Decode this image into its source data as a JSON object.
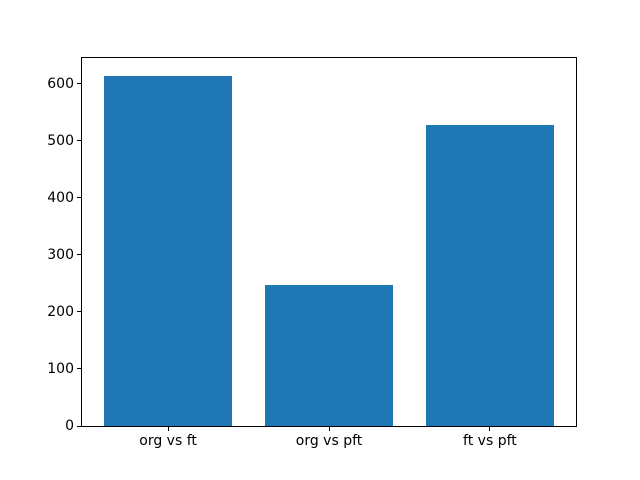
{
  "chart_data": {
    "type": "bar",
    "title": "",
    "xlabel": "",
    "ylabel": "",
    "categories": [
      "org vs ft",
      "org vs pft",
      "ft vs pft"
    ],
    "values": [
      614,
      248,
      528
    ],
    "yticks": [
      0,
      100,
      200,
      300,
      400,
      500,
      600
    ],
    "ylim": [
      0,
      645
    ],
    "xlim": [
      -0.535,
      2.535
    ],
    "bar_width": 0.8,
    "bar_color": "#1f77b4",
    "background_color": "#ffffff",
    "grid": false,
    "legend": "none"
  }
}
